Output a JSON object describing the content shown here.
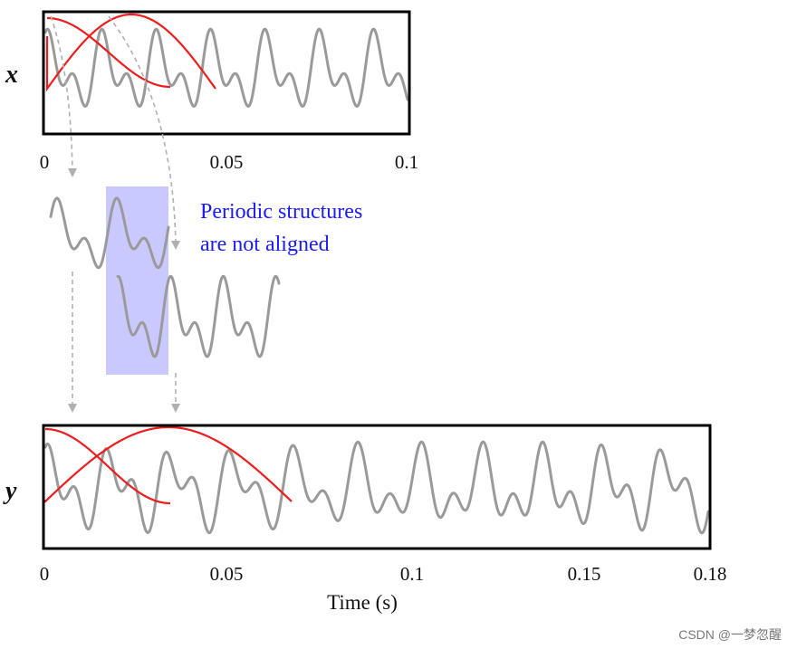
{
  "top_panel": {
    "axis_letter": "x",
    "ticks": [
      "0",
      "0.05",
      "0.1"
    ]
  },
  "bottom_panel": {
    "axis_letter": "y",
    "ticks": [
      "0",
      "0.05",
      "0.1",
      "0.15",
      "0.18"
    ],
    "xlabel": "Time (s)"
  },
  "annotation": {
    "lines": [
      "Periodic structures",
      "are not aligned"
    ],
    "color": "#1a1aff",
    "highlight_color": "#c9c9ff"
  },
  "colors": {
    "wave": "#9a9a9a",
    "window": "#ee1c1c",
    "frame": "#000000"
  },
  "watermark": "CSDN @一梦忽醒"
}
